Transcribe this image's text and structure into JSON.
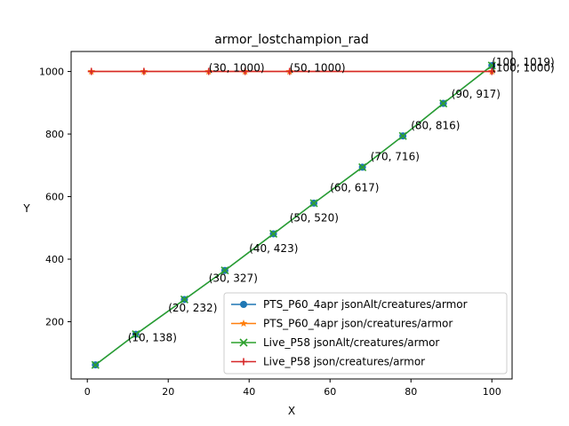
{
  "chart_data": {
    "type": "line",
    "title": "armor_lostchampion_rad",
    "xlabel": "X",
    "ylabel": "Y",
    "xlim": [
      -4,
      105
    ],
    "ylim": [
      17,
      1064
    ],
    "xticks": [
      0,
      20,
      40,
      60,
      80,
      100
    ],
    "yticks": [
      200,
      400,
      600,
      800,
      1000
    ],
    "grid": false,
    "legend_position": "lower-right",
    "series": [
      {
        "name": "PTS_P60_4apr jsonAlt/creatures/armor",
        "color": "#1f77b4",
        "marker": "circle",
        "x": [
          2,
          12,
          24,
          34,
          46,
          56,
          68,
          78,
          88,
          100
        ],
        "y": [
          62,
          160,
          271,
          364,
          481,
          579,
          694,
          794,
          898,
          1019
        ]
      },
      {
        "name": "PTS_P60_4apr json/creatures/armor",
        "color": "#ff7f0e",
        "marker": "star",
        "x": [
          1,
          14,
          30,
          39,
          50,
          100
        ],
        "y": [
          1000,
          1000,
          1000,
          1000,
          1000,
          1000
        ]
      },
      {
        "name": "Live_P58 jsonAlt/creatures/armor",
        "color": "#2ca02c",
        "marker": "x",
        "x": [
          2,
          12,
          24,
          34,
          46,
          56,
          68,
          78,
          88,
          100
        ],
        "y": [
          62,
          160,
          271,
          364,
          481,
          579,
          694,
          794,
          898,
          1019
        ]
      },
      {
        "name": "Live_P58 json/creatures/armor",
        "color": "#d62728",
        "marker": "plus",
        "x": [
          1,
          14,
          30,
          39,
          50,
          100
        ],
        "y": [
          1000,
          1000,
          1000,
          1000,
          1000,
          1000
        ]
      }
    ],
    "annotations": [
      {
        "text": "(10, 138)",
        "x": 10,
        "y": 138
      },
      {
        "text": "(20, 232)",
        "x": 20,
        "y": 232
      },
      {
        "text": "(30, 327)",
        "x": 30,
        "y": 327
      },
      {
        "text": "(40, 423)",
        "x": 40,
        "y": 423
      },
      {
        "text": "(50, 520)",
        "x": 50,
        "y": 520
      },
      {
        "text": "(60, 617)",
        "x": 60,
        "y": 617
      },
      {
        "text": "(70, 716)",
        "x": 70,
        "y": 716
      },
      {
        "text": "(80, 816)",
        "x": 80,
        "y": 816
      },
      {
        "text": "(90, 917)",
        "x": 90,
        "y": 917
      },
      {
        "text": "(100, 1019)",
        "x": 100,
        "y": 1019
      },
      {
        "text": "(30, 1000)",
        "x": 30,
        "y": 1000
      },
      {
        "text": "(50, 1000)",
        "x": 50,
        "y": 1000
      },
      {
        "text": "(100, 1000)",
        "x": 100,
        "y": 1000
      }
    ]
  }
}
